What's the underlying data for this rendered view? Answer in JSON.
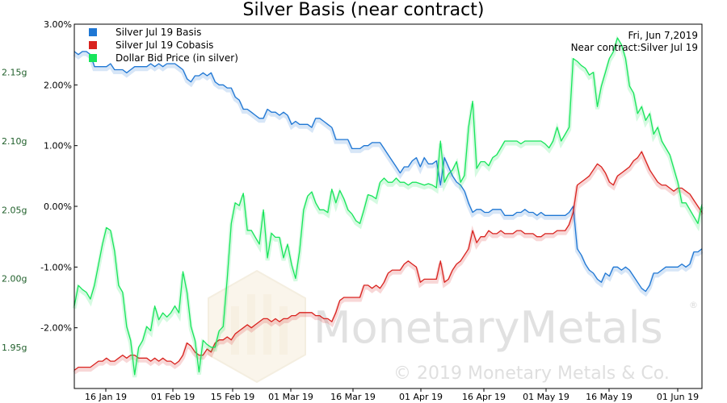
{
  "chart_data": {
    "type": "line",
    "title": "Silver Basis (near contract)",
    "info": {
      "date": "Fri, Jun 7,2019",
      "contract": "Near contract:Silver Jul 19"
    },
    "watermark": {
      "brand": "MonetaryMetals",
      "copyright": "© 2019 Monetary Metals & Co."
    },
    "x_ticks": [
      "16 Jan 19",
      "01 Feb 19",
      "15 Feb 19",
      "01 Mar 19",
      "16 Mar 19",
      "01 Apr 19",
      "16 Apr 19",
      "01 May 19",
      "16 May 19",
      "01 Jun 19"
    ],
    "right_axis": {
      "ticks": [
        "3.00%",
        "2.00%",
        "1.00%",
        "0.00%",
        "-1.00%",
        "-2.00%"
      ],
      "tick_values": [
        3,
        2,
        1,
        0,
        -1,
        -2
      ],
      "ylim": [
        -3.0,
        3.0
      ]
    },
    "left_axis": {
      "ticks": [
        "2.15g",
        "2.10g",
        "2.05g",
        "2.00g",
        "1.95g"
      ],
      "tick_values": [
        2.15,
        2.1,
        2.05,
        2.0,
        1.95
      ],
      "ylim": [
        1.92,
        2.185
      ]
    },
    "series": [
      {
        "name": "Silver Jul 19 Basis",
        "color": "#1f77d4",
        "axis": "right",
        "x": [
          0,
          1,
          2,
          3,
          4,
          5,
          6,
          7,
          8,
          9,
          10,
          11,
          12,
          13,
          14,
          15,
          16,
          17,
          18,
          19,
          20,
          21,
          22,
          23,
          24,
          25,
          26,
          27,
          28,
          29,
          30,
          31,
          32,
          33,
          34,
          35,
          36,
          37,
          38,
          39,
          40,
          41,
          42,
          43,
          44,
          45,
          46,
          47,
          48,
          49,
          50,
          51,
          52,
          53,
          54,
          55,
          56,
          57,
          58,
          59,
          60,
          61,
          62,
          63,
          64,
          65,
          66,
          67,
          68,
          69,
          70,
          71,
          72,
          73,
          74,
          75,
          76,
          77,
          78,
          79,
          80,
          81,
          82,
          83,
          84,
          85,
          86,
          87,
          88,
          89,
          90,
          91,
          92,
          93,
          94,
          95,
          96,
          97,
          98,
          99,
          100,
          101,
          102,
          103,
          104,
          105,
          106,
          107,
          108,
          109,
          110,
          111,
          112,
          113,
          114,
          115,
          116,
          117,
          118,
          119,
          120,
          121,
          122,
          123,
          124,
          125,
          126,
          127,
          128,
          129,
          130,
          131,
          132,
          133,
          134,
          135,
          136,
          137,
          138,
          139,
          140,
          141,
          142,
          143,
          144,
          145,
          146,
          147,
          148,
          149,
          150,
          151,
          152,
          153,
          154,
          155,
          156
        ],
        "values": [
          2.55,
          2.5,
          2.55,
          2.55,
          2.5,
          2.3,
          2.3,
          2.3,
          2.3,
          2.35,
          2.25,
          2.25,
          2.25,
          2.2,
          2.25,
          2.3,
          2.3,
          2.3,
          2.3,
          2.35,
          2.3,
          2.35,
          2.3,
          2.35,
          2.35,
          2.35,
          2.3,
          2.25,
          2.1,
          2.05,
          2.15,
          2.15,
          2.2,
          2.15,
          2.2,
          2.05,
          2.0,
          2.0,
          1.95,
          1.95,
          1.8,
          1.75,
          1.6,
          1.6,
          1.55,
          1.5,
          1.45,
          1.45,
          1.6,
          1.55,
          1.55,
          1.5,
          1.55,
          1.5,
          1.35,
          1.4,
          1.35,
          1.35,
          1.35,
          1.3,
          1.45,
          1.45,
          1.4,
          1.35,
          1.3,
          1.1,
          1.1,
          1.1,
          1.1,
          0.95,
          0.95,
          0.95,
          1.0,
          1.0,
          1.05,
          1.05,
          1.05,
          0.95,
          0.85,
          0.75,
          0.65,
          0.55,
          0.65,
          0.65,
          0.75,
          0.8,
          0.65,
          0.8,
          0.7,
          0.7,
          0.75,
          0.35,
          0.8,
          0.65,
          0.5,
          0.4,
          0.35,
          0.25,
          0.05,
          -0.1,
          -0.05,
          -0.05,
          -0.1,
          -0.1,
          -0.05,
          -0.05,
          -0.05,
          -0.15,
          -0.15,
          -0.15,
          -0.1,
          -0.1,
          -0.05,
          -0.1,
          -0.1,
          -0.15,
          -0.1,
          -0.15,
          -0.15,
          -0.15,
          -0.15,
          -0.15,
          -0.15,
          -0.1,
          0.0,
          -0.7,
          -0.8,
          -0.95,
          -1.05,
          -1.1,
          -1.2,
          -1.25,
          -1.1,
          -1.15,
          -1.0,
          -1.0,
          -1.05,
          -1.0,
          -1.05,
          -1.15,
          -1.25,
          -1.35,
          -1.4,
          -1.3,
          -1.1,
          -1.1,
          -1.05,
          -1.0,
          -1.0,
          -1.0,
          -1.0,
          -0.95,
          -1.0,
          -0.95,
          -0.75,
          -0.75,
          -0.7
        ]
      },
      {
        "name": "Silver Jul 19 Cobasis",
        "color": "#d9231f",
        "axis": "right",
        "x": [
          0,
          1,
          2,
          3,
          4,
          5,
          6,
          7,
          8,
          9,
          10,
          11,
          12,
          13,
          14,
          15,
          16,
          17,
          18,
          19,
          20,
          21,
          22,
          23,
          24,
          25,
          26,
          27,
          28,
          29,
          30,
          31,
          32,
          33,
          34,
          35,
          36,
          37,
          38,
          39,
          40,
          41,
          42,
          43,
          44,
          45,
          46,
          47,
          48,
          49,
          50,
          51,
          52,
          53,
          54,
          55,
          56,
          57,
          58,
          59,
          60,
          61,
          62,
          63,
          64,
          65,
          66,
          67,
          68,
          69,
          70,
          71,
          72,
          73,
          74,
          75,
          76,
          77,
          78,
          79,
          80,
          81,
          82,
          83,
          84,
          85,
          86,
          87,
          88,
          89,
          90,
          91,
          92,
          93,
          94,
          95,
          96,
          97,
          98,
          99,
          100,
          101,
          102,
          103,
          104,
          105,
          106,
          107,
          108,
          109,
          110,
          111,
          112,
          113,
          114,
          115,
          116,
          117,
          118,
          119,
          120,
          121,
          122,
          123,
          124,
          125,
          126,
          127,
          128,
          129,
          130,
          131,
          132,
          133,
          134,
          135,
          136,
          137,
          138,
          139,
          140,
          141,
          142,
          143,
          144,
          145,
          146,
          147,
          148,
          149,
          150,
          151,
          152,
          153,
          154,
          155,
          156
        ],
        "values": [
          -2.7,
          -2.65,
          -2.65,
          -2.65,
          -2.65,
          -2.6,
          -2.55,
          -2.55,
          -2.5,
          -2.55,
          -2.55,
          -2.5,
          -2.45,
          -2.5,
          -2.45,
          -2.45,
          -2.5,
          -2.5,
          -2.5,
          -2.55,
          -2.5,
          -2.55,
          -2.5,
          -2.55,
          -2.55,
          -2.6,
          -2.55,
          -2.45,
          -2.25,
          -2.3,
          -2.4,
          -2.45,
          -2.45,
          -2.35,
          -2.4,
          -2.25,
          -2.2,
          -2.2,
          -2.15,
          -2.2,
          -2.1,
          -2.05,
          -2.0,
          -1.95,
          -2.0,
          -1.95,
          -1.9,
          -1.85,
          -1.85,
          -1.9,
          -1.85,
          -1.9,
          -1.85,
          -1.85,
          -1.8,
          -1.8,
          -1.75,
          -1.75,
          -1.75,
          -1.75,
          -1.8,
          -1.8,
          -1.85,
          -1.85,
          -1.9,
          -1.75,
          -1.55,
          -1.5,
          -1.5,
          -1.5,
          -1.5,
          -1.5,
          -1.3,
          -1.3,
          -1.35,
          -1.3,
          -1.35,
          -1.25,
          -1.1,
          -1.05,
          -1.05,
          -1.05,
          -0.95,
          -0.9,
          -0.95,
          -1.0,
          -1.25,
          -1.2,
          -1.2,
          -1.2,
          -1.2,
          -0.9,
          -1.25,
          -1.2,
          -1.05,
          -0.95,
          -0.9,
          -0.8,
          -0.7,
          -0.4,
          -0.6,
          -0.5,
          -0.5,
          -0.4,
          -0.45,
          -0.45,
          -0.4,
          -0.45,
          -0.45,
          -0.45,
          -0.4,
          -0.4,
          -0.45,
          -0.45,
          -0.45,
          -0.5,
          -0.5,
          -0.45,
          -0.45,
          -0.45,
          -0.4,
          -0.4,
          -0.4,
          -0.3,
          -0.1,
          0.35,
          0.4,
          0.45,
          0.5,
          0.6,
          0.7,
          0.65,
          0.55,
          0.4,
          0.35,
          0.5,
          0.55,
          0.6,
          0.65,
          0.75,
          0.8,
          0.9,
          0.75,
          0.6,
          0.5,
          0.4,
          0.35,
          0.35,
          0.3,
          0.25,
          0.3,
          0.3,
          0.25,
          0.2,
          0.1,
          0.0,
          -0.1
        ]
      },
      {
        "name": "Dollar Bid Price (in silver)",
        "color": "#18e55b",
        "axis": "left",
        "x": [
          0,
          1,
          2,
          3,
          4,
          5,
          6,
          7,
          8,
          9,
          10,
          11,
          12,
          13,
          14,
          15,
          16,
          17,
          18,
          19,
          20,
          21,
          22,
          23,
          24,
          25,
          26,
          27,
          28,
          29,
          30,
          31,
          32,
          33,
          34,
          35,
          36,
          37,
          38,
          39,
          40,
          41,
          42,
          43,
          44,
          45,
          46,
          47,
          48,
          49,
          50,
          51,
          52,
          53,
          54,
          55,
          56,
          57,
          58,
          59,
          60,
          61,
          62,
          63,
          64,
          65,
          66,
          67,
          68,
          69,
          70,
          71,
          72,
          73,
          74,
          75,
          76,
          77,
          78,
          79,
          80,
          81,
          82,
          83,
          84,
          85,
          86,
          87,
          88,
          89,
          90,
          91,
          92,
          93,
          94,
          95,
          96,
          97,
          98,
          99,
          100,
          101,
          102,
          103,
          104,
          105,
          106,
          107,
          108,
          109,
          110,
          111,
          112,
          113,
          114,
          115,
          116,
          117,
          118,
          119,
          120,
          121,
          122,
          123,
          124,
          125,
          126,
          127,
          128,
          129,
          130,
          131,
          132,
          133,
          134,
          135,
          136,
          137,
          138,
          139,
          140,
          141,
          142,
          143,
          144,
          145,
          146,
          147,
          148,
          149,
          150,
          151,
          152,
          153,
          154,
          155,
          156
        ],
        "values": [
          1.98,
          1.995,
          1.992,
          1.99,
          1.985,
          1.995,
          2.01,
          2.025,
          2.037,
          2.035,
          2.02,
          1.995,
          1.99,
          1.965,
          1.955,
          1.93,
          1.95,
          1.955,
          1.965,
          1.962,
          1.98,
          1.97,
          1.975,
          1.972,
          1.975,
          1.98,
          1.975,
          2.005,
          1.99,
          1.965,
          1.955,
          1.932,
          1.955,
          1.952,
          1.95,
          1.95,
          1.962,
          1.965,
          2.0,
          2.04,
          2.055,
          2.053,
          2.062,
          2.035,
          2.035,
          2.03,
          2.025,
          2.05,
          2.015,
          2.033,
          2.03,
          2.03,
          2.015,
          2.025,
          2.01,
          2.0,
          2.02,
          2.05,
          2.06,
          2.063,
          2.055,
          2.05,
          2.05,
          2.048,
          2.065,
          2.055,
          2.064,
          2.058,
          2.05,
          2.047,
          2.042,
          2.04,
          2.05,
          2.061,
          2.06,
          2.058,
          2.07,
          2.073,
          2.07,
          2.07,
          2.073,
          2.07,
          2.07,
          2.068,
          2.07,
          2.07,
          2.069,
          2.068,
          2.069,
          2.068,
          2.066,
          2.1,
          2.07,
          2.076,
          2.079,
          2.085,
          2.07,
          2.075,
          2.11,
          2.129,
          2.08,
          2.085,
          2.085,
          2.082,
          2.088,
          2.09,
          2.095,
          2.1,
          2.1,
          2.1,
          2.1,
          2.098,
          2.1,
          2.1,
          2.1,
          2.1,
          2.1,
          2.098,
          2.095,
          2.1,
          2.11,
          2.1,
          2.105,
          2.11,
          2.16,
          2.158,
          2.155,
          2.153,
          2.148,
          2.15,
          2.125,
          2.14,
          2.15,
          2.16,
          2.165,
          2.175,
          2.17,
          2.16,
          2.14,
          2.135,
          2.12,
          2.125,
          2.115,
          2.12,
          2.105,
          2.11,
          2.1,
          2.095,
          2.09,
          2.08,
          2.07,
          2.055,
          2.055,
          2.05,
          2.045,
          2.04,
          2.054
        ]
      }
    ]
  }
}
